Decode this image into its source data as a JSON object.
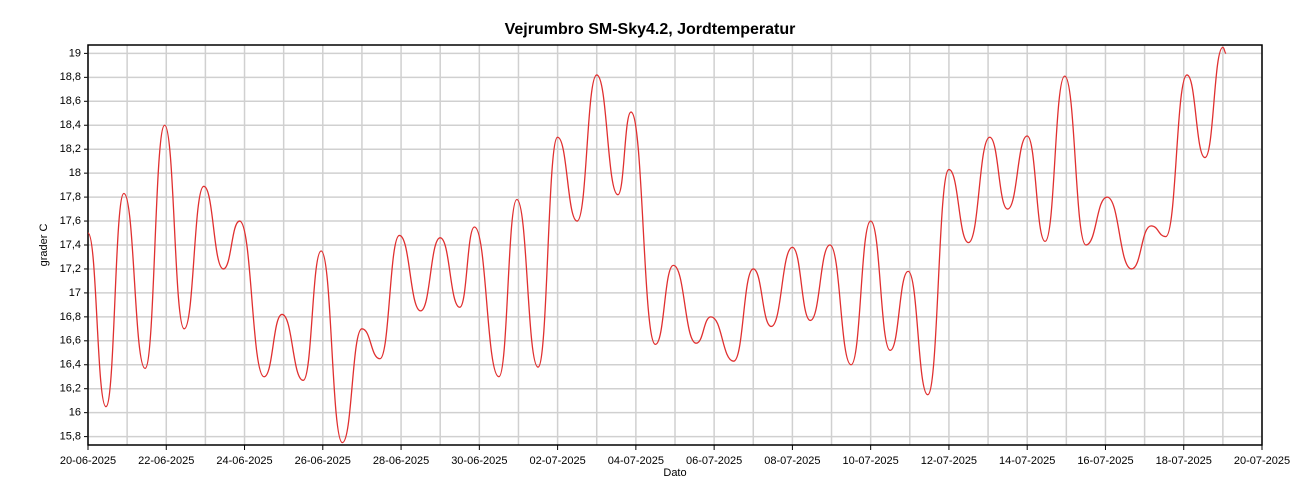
{
  "chart_data": {
    "type": "line",
    "title": "Vejrumbro SM-Sky4.2, Jordtemperatur",
    "x_label": "Dato",
    "y_label": "grader C",
    "xlim": [
      "2025-06-20",
      "2025-07-20"
    ],
    "xticks": [
      {
        "value": "2025-06-20",
        "label": "20-06-2025"
      },
      {
        "value": "2025-06-22",
        "label": "22-06-2025"
      },
      {
        "value": "2025-06-24",
        "label": "24-06-2025"
      },
      {
        "value": "2025-06-26",
        "label": "26-06-2025"
      },
      {
        "value": "2025-06-28",
        "label": "28-06-2025"
      },
      {
        "value": "2025-06-30",
        "label": "30-06-2025"
      },
      {
        "value": "2025-07-02",
        "label": "02-07-2025"
      },
      {
        "value": "2025-07-04",
        "label": "04-07-2025"
      },
      {
        "value": "2025-07-06",
        "label": "06-07-2025"
      },
      {
        "value": "2025-07-08",
        "label": "08-07-2025"
      },
      {
        "value": "2025-07-10",
        "label": "10-07-2025"
      },
      {
        "value": "2025-07-12",
        "label": "12-07-2025"
      },
      {
        "value": "2025-07-14",
        "label": "14-07-2025"
      },
      {
        "value": "2025-07-16",
        "label": "16-07-2025"
      },
      {
        "value": "2025-07-18",
        "label": "18-07-2025"
      },
      {
        "value": "2025-07-20",
        "label": "20-07-2025"
      }
    ],
    "ylim": [
      15.73,
      19.07
    ],
    "yticks": [
      {
        "value": 15.8,
        "label": "15,8"
      },
      16,
      {
        "value": 16.2,
        "label": "16,2"
      },
      {
        "value": 16.4,
        "label": "16,4"
      },
      {
        "value": 16.6,
        "label": "16,6"
      },
      {
        "value": 16.8,
        "label": "16,8"
      },
      17,
      {
        "value": 17.2,
        "label": "17,2"
      },
      {
        "value": 17.4,
        "label": "17,4"
      },
      {
        "value": 17.6,
        "label": "17,6"
      },
      {
        "value": 17.8,
        "label": "17,8"
      },
      18,
      {
        "value": 18.2,
        "label": "18,2"
      },
      {
        "value": 18.4,
        "label": "18,4"
      },
      {
        "value": 18.6,
        "label": "18,6"
      },
      {
        "value": 18.8,
        "label": "18,8"
      },
      19
    ],
    "grid": true,
    "x": [
      "2025-06-20T00:00",
      "2025-06-20T11:00",
      "2025-06-20T22:00",
      "2025-06-21T11:00",
      "2025-06-21T23:00",
      "2025-06-22T11:00",
      "2025-06-22T23:00",
      "2025-06-23T11:00",
      "2025-06-23T21:00",
      "2025-06-24T12:00",
      "2025-06-24T23:00",
      "2025-06-25T12:00",
      "2025-06-25T23:00",
      "2025-06-26T12:00",
      "2025-06-27T00:00",
      "2025-06-27T11:00",
      "2025-06-27T23:00",
      "2025-06-28T12:00",
      "2025-06-29T00:00",
      "2025-06-29T12:00",
      "2025-06-29T21:00",
      "2025-06-30T12:00",
      "2025-06-30T23:00",
      "2025-07-01T12:00",
      "2025-07-02T00:00",
      "2025-07-02T12:00",
      "2025-07-03T00:00",
      "2025-07-03T13:00",
      "2025-07-03T21:00",
      "2025-07-04T12:00",
      "2025-07-04T23:00",
      "2025-07-05T13:00",
      "2025-07-05T22:00",
      "2025-07-06T12:00",
      "2025-07-07T00:00",
      "2025-07-07T11:00",
      "2025-07-08T00:00",
      "2025-07-08T11:00",
      "2025-07-08T23:00",
      "2025-07-09T12:00",
      "2025-07-10T00:00",
      "2025-07-10T12:00",
      "2025-07-10T23:00",
      "2025-07-11T11:00",
      "2025-07-12T00:00",
      "2025-07-12T12:00",
      "2025-07-13T01:00",
      "2025-07-13T12:00",
      "2025-07-14T00:00",
      "2025-07-14T11:00",
      "2025-07-14T23:00",
      "2025-07-15T12:00",
      "2025-07-16T01:00",
      "2025-07-16T16:00",
      "2025-07-17T04:00",
      "2025-07-17T13:00",
      "2025-07-18T02:00",
      "2025-07-18T13:00",
      "2025-07-19T00:00",
      "2025-07-19T02:00"
    ],
    "series": [
      {
        "color": "#e03030",
        "values": [
          17.5,
          16.05,
          17.83,
          16.37,
          18.4,
          16.7,
          17.89,
          17.2,
          17.6,
          16.3,
          16.82,
          16.27,
          17.35,
          15.75,
          16.7,
          16.45,
          17.48,
          16.85,
          17.46,
          16.88,
          17.55,
          16.3,
          17.78,
          16.38,
          18.3,
          17.6,
          18.82,
          17.82,
          18.51,
          16.57,
          17.23,
          16.58,
          16.8,
          16.43,
          17.2,
          16.72,
          17.38,
          16.77,
          17.4,
          16.4,
          17.6,
          16.52,
          17.18,
          16.15,
          18.03,
          17.42,
          18.3,
          17.7,
          18.31,
          17.43,
          18.81,
          17.4,
          17.8,
          17.2,
          17.56,
          17.47,
          18.82,
          18.13,
          19.05,
          19.0
        ]
      }
    ]
  }
}
